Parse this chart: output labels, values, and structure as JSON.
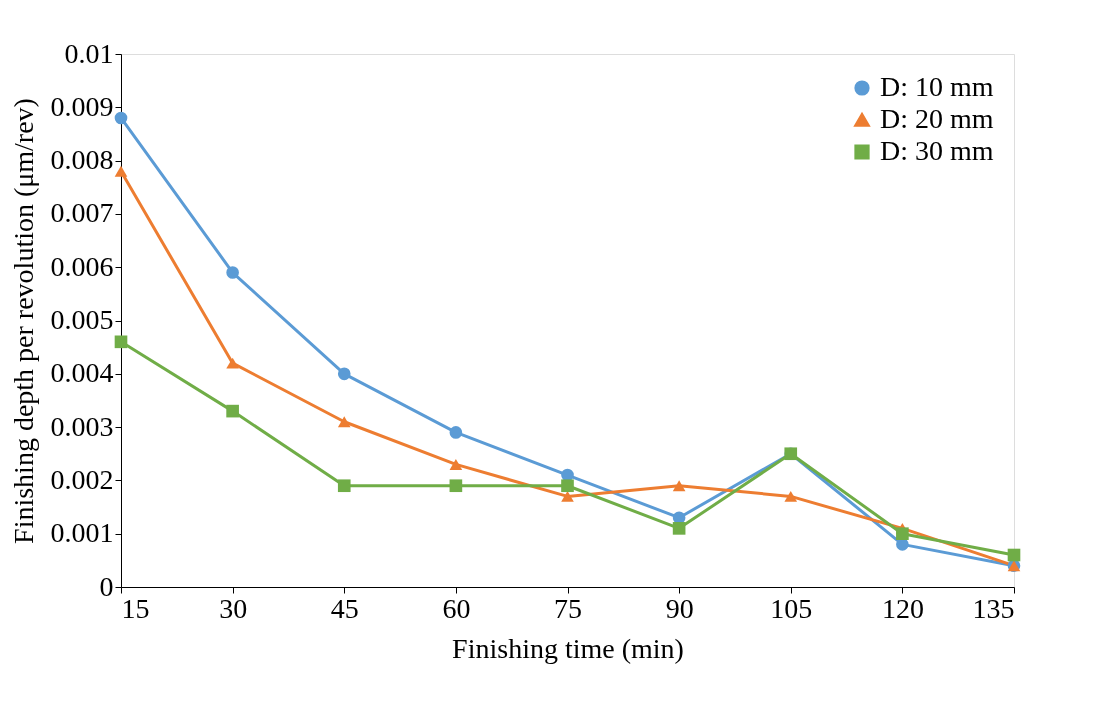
{
  "chart_data": {
    "type": "line",
    "xlabel": "Finishing time (min)",
    "ylabel": "Finishing depth per revolution (μm/rev)",
    "x": [
      15,
      30,
      45,
      60,
      75,
      90,
      105,
      120,
      135
    ],
    "series": [
      {
        "name": "D: 10 mm",
        "color": "#5b9bd5",
        "marker": "circle",
        "values": [
          0.0088,
          0.0059,
          0.004,
          0.0029,
          0.0021,
          0.0013,
          0.0025,
          0.0008,
          0.0004
        ]
      },
      {
        "name": "D: 20 mm",
        "color": "#ed7d31",
        "marker": "triangle",
        "values": [
          0.0078,
          0.0042,
          0.0031,
          0.0023,
          0.0017,
          0.0019,
          0.0017,
          0.0011,
          0.0004
        ]
      },
      {
        "name": "D: 30 mm",
        "color": "#70ad47",
        "marker": "square",
        "values": [
          0.0046,
          0.0033,
          0.0019,
          0.0019,
          0.0019,
          0.0011,
          0.0025,
          0.001,
          0.0006
        ]
      }
    ],
    "xlim": [
      15,
      135
    ],
    "xticks": [
      15,
      30,
      45,
      60,
      75,
      90,
      105,
      120,
      135
    ],
    "ylim": [
      0,
      0.01
    ],
    "yticks": [
      0,
      0.001,
      0.002,
      0.003,
      0.004,
      0.005,
      0.006,
      0.007,
      0.008,
      0.009,
      0.01
    ],
    "grid": false,
    "legend": "top right",
    "line_style": "solid"
  }
}
